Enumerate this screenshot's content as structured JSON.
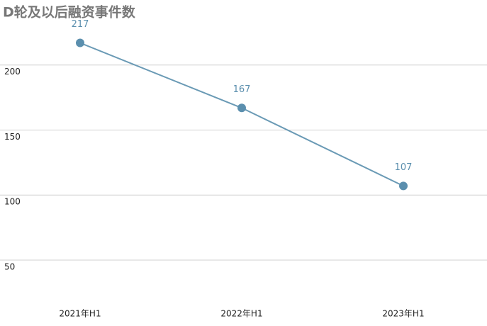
{
  "chart_data": {
    "type": "line",
    "title": "D轮及以后融资事件数",
    "categories": [
      "2021年H1",
      "2022年H1",
      "2023年H1"
    ],
    "series": [
      {
        "name": "D轮及以后融资事件数",
        "color": "#6a9ab5",
        "values": [
          217,
          167,
          107
        ]
      }
    ],
    "ylim": [
      20,
      250
    ],
    "yticks": [
      50,
      100,
      150,
      200
    ],
    "grid": true
  }
}
